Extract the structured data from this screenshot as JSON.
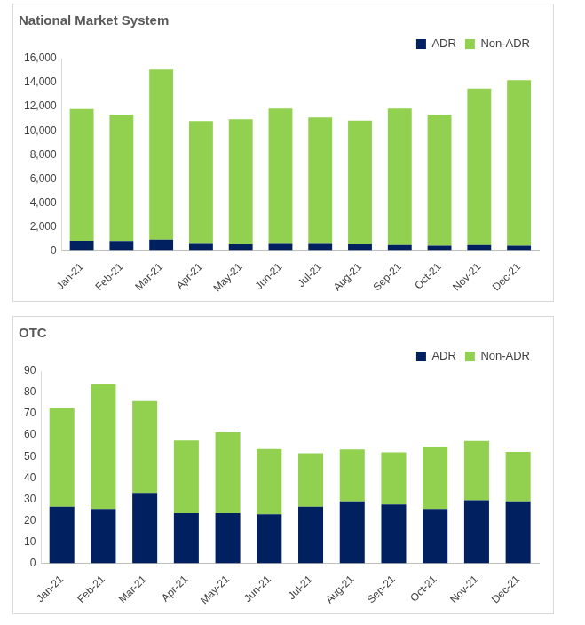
{
  "chart_data": [
    {
      "type": "bar",
      "title": "National Market System",
      "categories": [
        "Jan-21",
        "Feb-21",
        "Mar-21",
        "Apr-21",
        "May-21",
        "Jun-21",
        "Jul-21",
        "Aug-21",
        "Sep-21",
        "Oct-21",
        "Nov-21",
        "Dec-21"
      ],
      "series": [
        {
          "name": "ADR",
          "color": "#002060",
          "values": [
            800,
            750,
            950,
            600,
            550,
            600,
            600,
            550,
            500,
            450,
            500,
            450
          ]
        },
        {
          "name": "Non-ADR",
          "color": "#92D050",
          "values": [
            11000,
            10600,
            14150,
            10200,
            10400,
            11250,
            10500,
            10300,
            11350,
            10900,
            13000,
            13750
          ]
        }
      ],
      "ylim": [
        0,
        16000
      ],
      "yticks": [
        0,
        {
          "value": 2000,
          "label": "2,000"
        },
        {
          "value": 4000,
          "label": "4,000"
        },
        {
          "value": 6000,
          "label": "6,000"
        },
        {
          "value": 8000,
          "label": "8,000"
        },
        {
          "value": 10000,
          "label": "10,000"
        },
        {
          "value": 12000,
          "label": "12,000"
        },
        {
          "value": 14000,
          "label": "14,000"
        },
        {
          "value": 16000,
          "label": "16,000"
        }
      ],
      "stacked": true,
      "grid": false,
      "legend": "top-right"
    },
    {
      "type": "bar",
      "title": "OTC",
      "categories": [
        "Jan-21",
        "Feb-21",
        "Mar-21",
        "Apr-21",
        "May-21",
        "Jun-21",
        "Jul-21",
        "Aug-21",
        "Sep-21",
        "Oct-21",
        "Nov-21",
        "Dec-21"
      ],
      "series": [
        {
          "name": "ADR",
          "color": "#002060",
          "values": [
            26.5,
            25.5,
            33,
            23.5,
            23.5,
            23,
            26.5,
            29,
            27.5,
            25.5,
            29.5,
            29
          ]
        },
        {
          "name": "Non-ADR",
          "color": "#92D050",
          "values": [
            46,
            58.5,
            43,
            34,
            37.8,
            30.5,
            25,
            24.3,
            24.5,
            29,
            27.8,
            23.2
          ]
        }
      ],
      "ylim": [
        0,
        90
      ],
      "yticks": [
        0,
        10,
        20,
        30,
        40,
        50,
        60,
        70,
        80,
        90
      ],
      "stacked": true,
      "grid": false,
      "legend": "top-right"
    }
  ]
}
